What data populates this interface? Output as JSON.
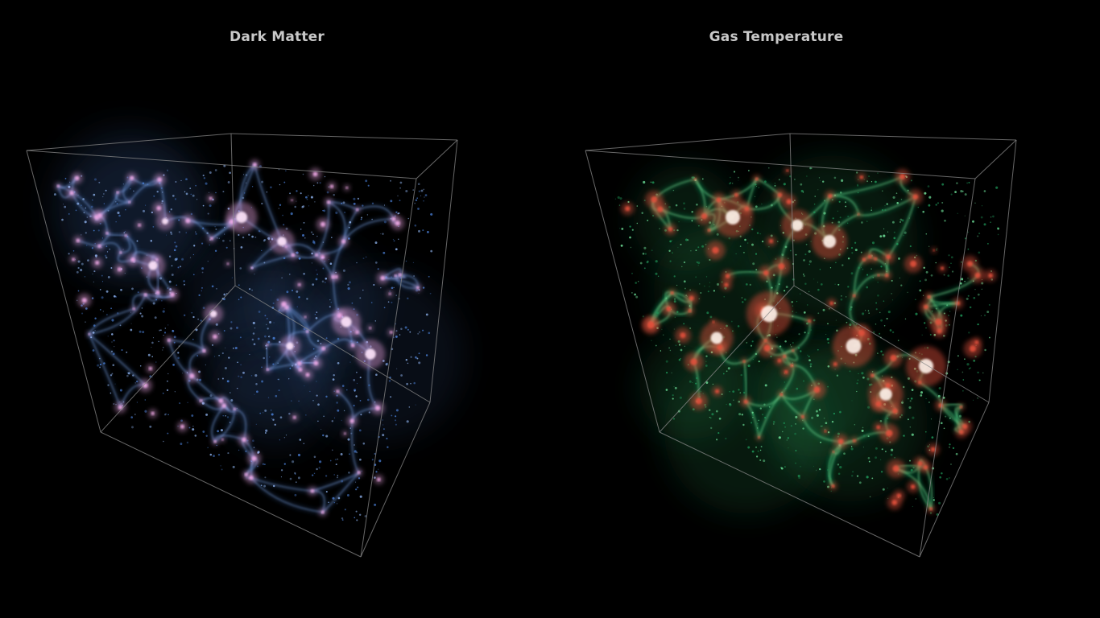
{
  "panels": [
    {
      "title": "Dark Matter",
      "palette": {
        "background": "#000000",
        "filament": "#4a7fd6",
        "filament_bright": "#8fb4f0",
        "halo": "#f0a8e6",
        "halo_core": "#ffe4fb",
        "box_edge": "#8a8a8a"
      }
    },
    {
      "title": "Gas Temperature",
      "palette": {
        "background": "#000000",
        "filament": "#1f9a5a",
        "filament_bright": "#6fe39a",
        "halo": "#e0503c",
        "halo_core": "#fff2ea",
        "box_edge": "#8a8a8a"
      }
    }
  ]
}
